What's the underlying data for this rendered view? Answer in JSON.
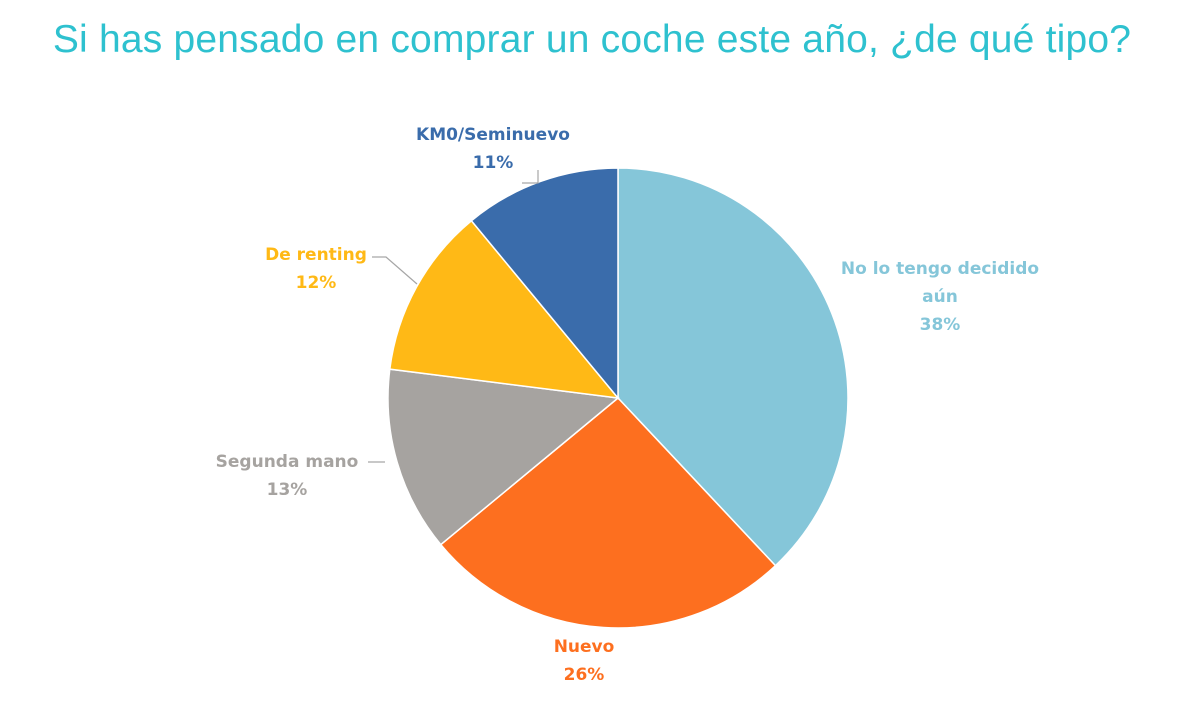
{
  "chart_data": {
    "type": "pie",
    "title": "Si has pensado en comprar un coche este año, ¿de qué tipo?",
    "title_color": "#2ec1cf",
    "start_angle": "top",
    "direction": "clockwise",
    "legend": "none",
    "slices": [
      {
        "label": "No lo tengo decidido aún",
        "label_lines": [
          "No lo tengo decidido",
          "aún"
        ],
        "value": 38,
        "display_value": "38%",
        "color": "#85c6d9"
      },
      {
        "label": "Nuevo",
        "label_lines": [
          "Nuevo"
        ],
        "value": 26,
        "display_value": "26%",
        "color": "#fd6f1f"
      },
      {
        "label": "Segunda mano",
        "label_lines": [
          "Segunda mano"
        ],
        "value": 13,
        "display_value": "13%",
        "color": "#a6a3a0"
      },
      {
        "label": "De renting",
        "label_lines": [
          "De renting"
        ],
        "value": 12,
        "display_value": "12%",
        "color": "#ffb916"
      },
      {
        "label": "KM0/Seminuevo",
        "label_lines": [
          "KM0/Seminuevo"
        ],
        "value": 11,
        "display_value": "11%",
        "color": "#3a6cab"
      }
    ]
  }
}
